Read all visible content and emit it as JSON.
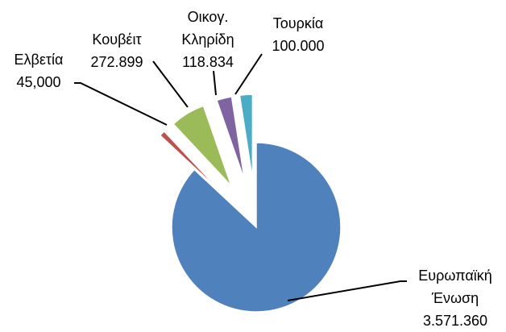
{
  "chart_data": {
    "type": "pie",
    "categories": [
      "Ευρωπαϊκή Ένωση",
      "Ελβετία",
      "Κουβέιτ",
      "Οικογ. Κληρίδη",
      "Τουρκία"
    ],
    "values": [
      3571360,
      45000,
      272899,
      118834,
      100000
    ],
    "value_labels": [
      "3.571.360",
      "45,000",
      "272.899",
      "118.834",
      "100.000"
    ],
    "colors": [
      "#4f81bd",
      "#c0504d",
      "#9bbb59",
      "#8064a2",
      "#4bacc6"
    ]
  }
}
